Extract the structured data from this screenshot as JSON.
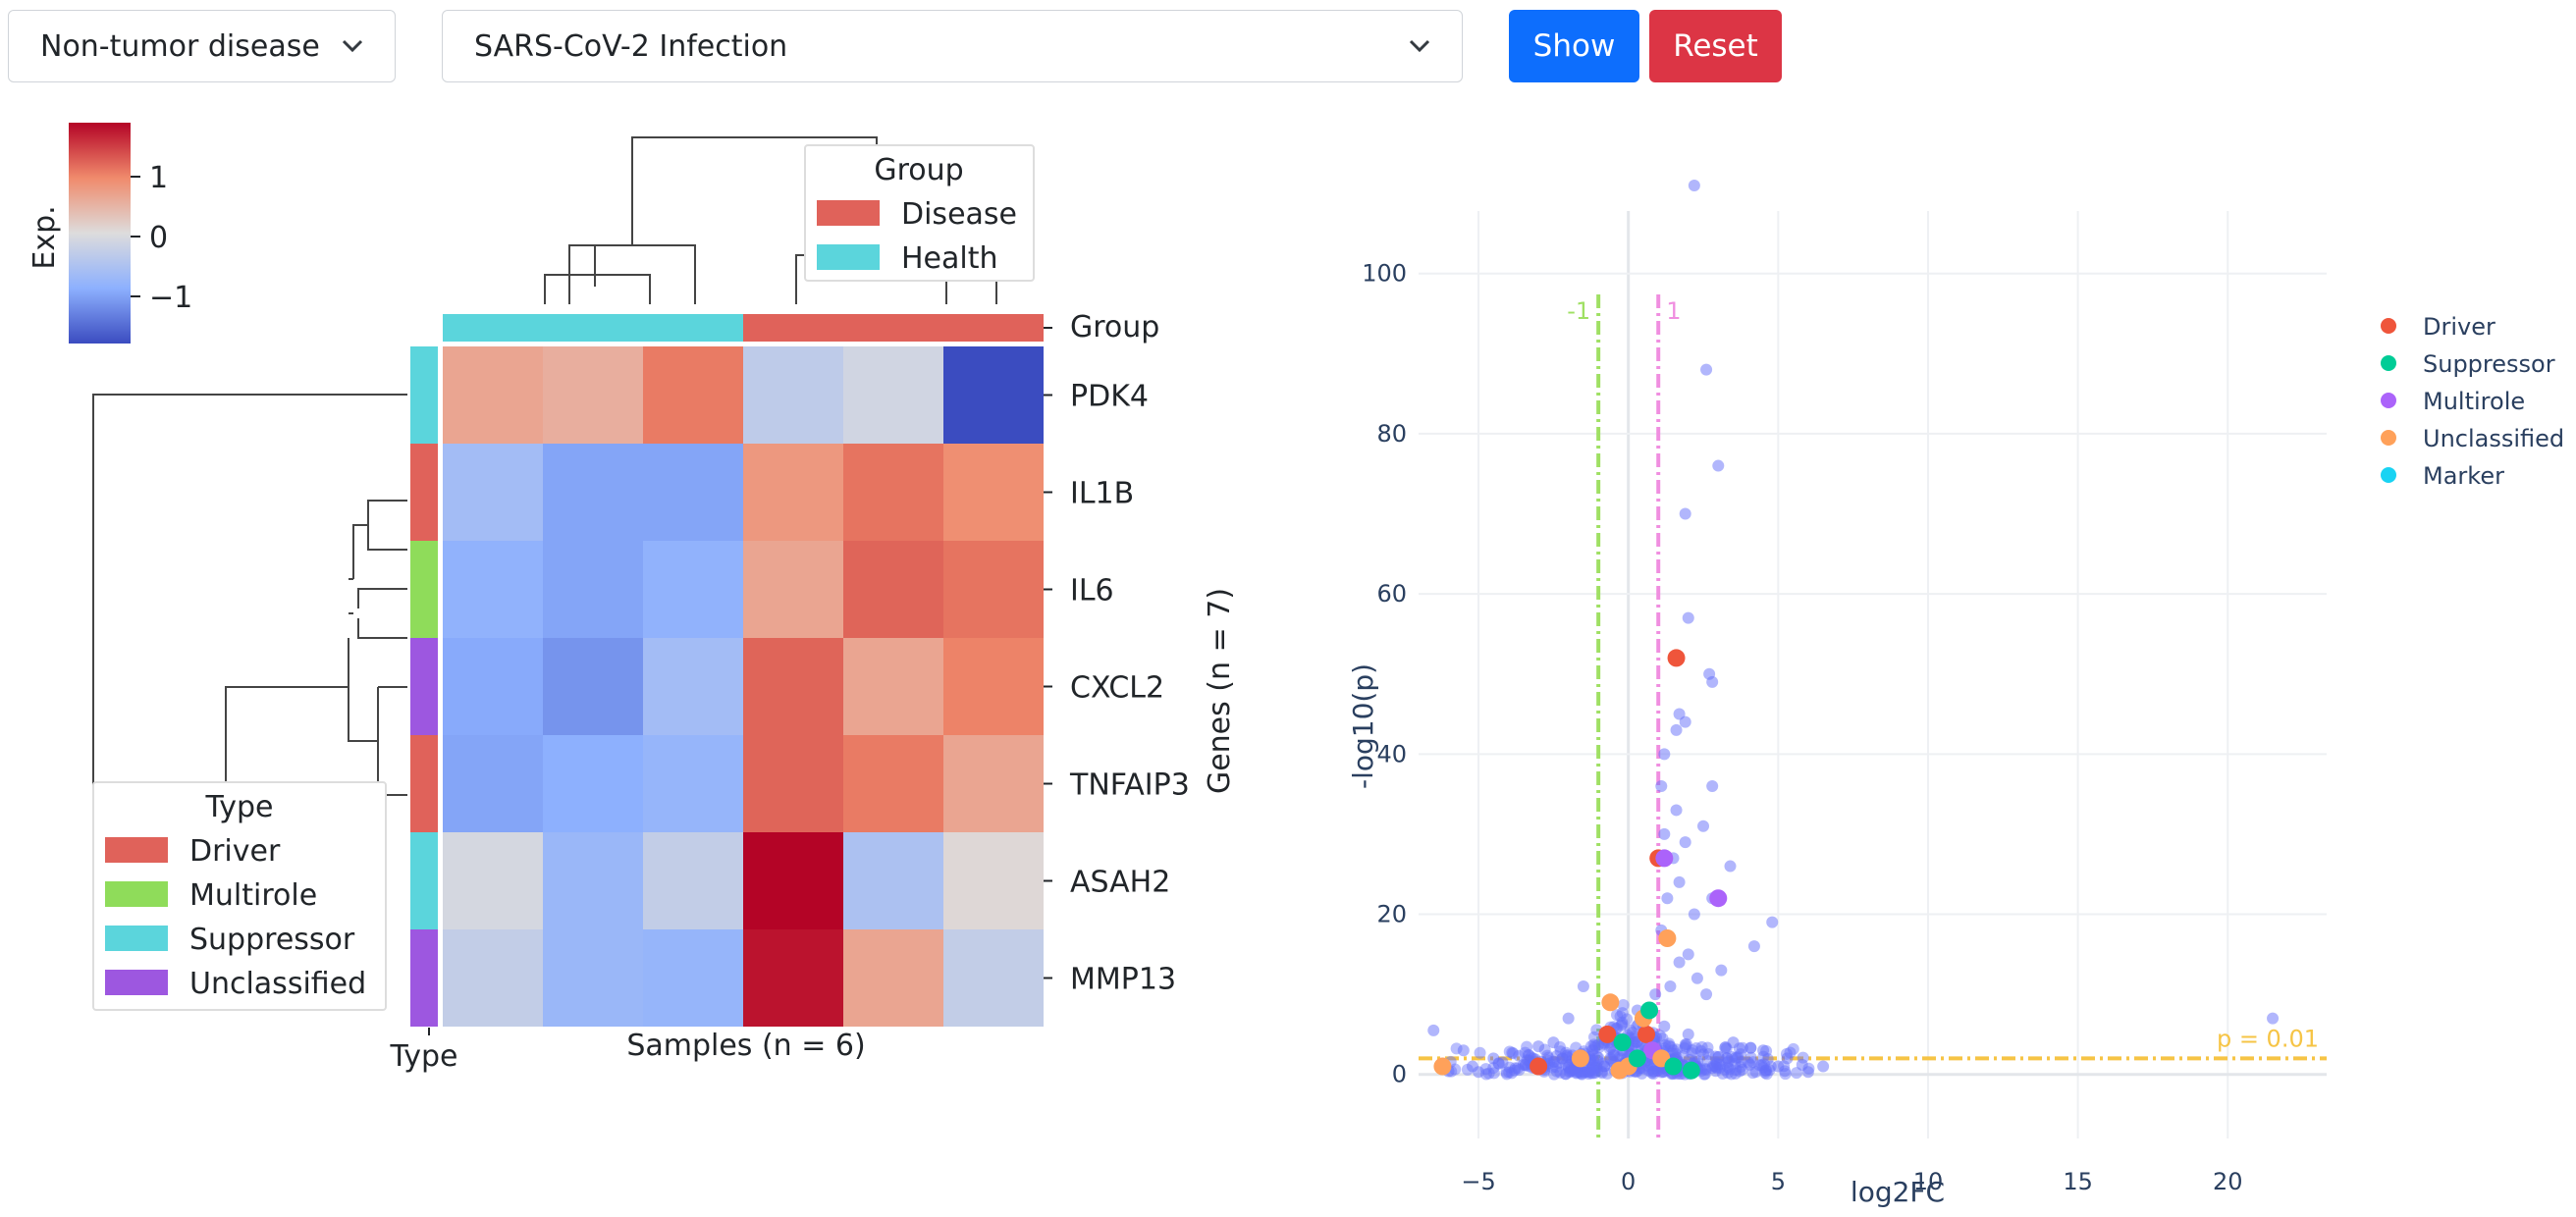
{
  "controls": {
    "category_select": "Non-tumor disease",
    "disease_select": "SARS-CoV-2 Infection",
    "show_label": "Show",
    "reset_label": "Reset"
  },
  "colors": {
    "disease": "#e0625a",
    "health": "#5bd5dc",
    "driver": "#e0625a",
    "multirole": "#8fdc5a",
    "suppressor": "#5bd5dc",
    "unclassified": "#9d57e0",
    "show_button": "#0d6efd",
    "reset_button": "#dc3545"
  },
  "chart_data": [
    {
      "type": "heatmap",
      "colorbar": {
        "title": "Exp.",
        "ticks": [
          "1",
          "0",
          "−1"
        ],
        "colormap": "coolwarm",
        "range": [
          -1.8,
          1.8
        ]
      },
      "columns_label": "Samples (n = 6)",
      "rows_label": "Genes (n = 7)",
      "group_bar_label": "Group",
      "type_bar_label": "Type",
      "column_groups": [
        "Health",
        "Health",
        "Health",
        "Disease",
        "Disease",
        "Disease"
      ],
      "row_types": [
        "Suppressor",
        "Driver",
        "Multirole",
        "Unclassified",
        "Driver",
        "Suppressor",
        "Unclassified"
      ],
      "rows": [
        "PDK4",
        "IL1B",
        "IL6",
        "CXCL2",
        "TNFAIP3",
        "ASAH2",
        "MMP13"
      ],
      "values": [
        [
          0.6,
          0.5,
          1.0,
          -0.35,
          -0.15,
          -1.8
        ],
        [
          -0.65,
          -1.0,
          -1.0,
          0.75,
          1.05,
          0.85
        ],
        [
          -0.85,
          -1.0,
          -0.85,
          0.6,
          1.15,
          1.05
        ],
        [
          -0.95,
          -1.15,
          -0.65,
          1.15,
          0.6,
          0.95
        ],
        [
          -1.0,
          -0.9,
          -0.8,
          1.15,
          1.0,
          0.6
        ],
        [
          -0.1,
          -0.75,
          -0.3,
          1.9,
          -0.55,
          0.05
        ],
        [
          -0.3,
          -0.75,
          -0.8,
          1.7,
          0.6,
          -0.3
        ]
      ],
      "group_legend": {
        "title": "Group",
        "items": [
          "Disease",
          "Health"
        ]
      },
      "type_legend": {
        "title": "Type",
        "items": [
          "Driver",
          "Multirole",
          "Suppressor",
          "Unclassified"
        ]
      }
    },
    {
      "type": "scatter",
      "xlabel": "log2FC",
      "ylabel": "-log10(p)",
      "xlim": [
        -7,
        23.3
      ],
      "ylim": [
        -8,
        117
      ],
      "xticks": [
        -5,
        0,
        5,
        10,
        15,
        20
      ],
      "yticks": [
        0,
        20,
        40,
        60,
        80,
        100
      ],
      "grid": true,
      "vlines": [
        {
          "x": -1,
          "label": "-1",
          "color": "#9fe063"
        },
        {
          "x": 1,
          "label": "1",
          "color": "#f08ee0"
        }
      ],
      "hline": {
        "y": 2,
        "label": "p = 0.01",
        "color": "#f6c445"
      },
      "legend": {
        "position": "top-right",
        "items": [
          {
            "name": "Driver",
            "color": "#ef553b"
          },
          {
            "name": "Suppressor",
            "color": "#00cc96"
          },
          {
            "name": "Multirole",
            "color": "#ab63fa"
          },
          {
            "name": "Unclassified",
            "color": "#ffa15a"
          },
          {
            "name": "Marker",
            "color": "#19d3f3"
          }
        ]
      },
      "background_points": [
        [
          2.2,
          111
        ],
        [
          2.6,
          88
        ],
        [
          3.0,
          76
        ],
        [
          1.9,
          70
        ],
        [
          2.0,
          57
        ],
        [
          2.8,
          49
        ],
        [
          2.7,
          50
        ],
        [
          1.7,
          45
        ],
        [
          1.9,
          44
        ],
        [
          1.6,
          43
        ],
        [
          1.2,
          40
        ],
        [
          2.8,
          36
        ],
        [
          1.1,
          36
        ],
        [
          1.6,
          33
        ],
        [
          2.5,
          31
        ],
        [
          1.2,
          30
        ],
        [
          1.9,
          29
        ],
        [
          1.5,
          27
        ],
        [
          3.4,
          26
        ],
        [
          1.7,
          24
        ],
        [
          2.8,
          22
        ],
        [
          1.3,
          22
        ],
        [
          2.2,
          20
        ],
        [
          4.8,
          19
        ],
        [
          1.1,
          18
        ],
        [
          4.2,
          16
        ],
        [
          2.0,
          15
        ],
        [
          1.7,
          14
        ],
        [
          3.1,
          13
        ],
        [
          2.3,
          12
        ],
        [
          1.4,
          11
        ],
        [
          2.6,
          10
        ],
        [
          0.9,
          10
        ],
        [
          -1.5,
          11
        ],
        [
          -2.0,
          7
        ],
        [
          -6.5,
          5.5
        ],
        [
          -5.5,
          3
        ],
        [
          -4.5,
          2
        ],
        [
          -3.0,
          3.5
        ],
        [
          -2.5,
          4
        ],
        [
          0.3,
          8
        ],
        [
          0.5,
          6
        ],
        [
          1.2,
          6
        ],
        [
          2.0,
          5
        ],
        [
          3.5,
          4
        ],
        [
          4.5,
          3
        ],
        [
          5.3,
          2
        ],
        [
          6.5,
          1
        ],
        [
          21.5,
          7
        ],
        [
          -5.2,
          1
        ],
        [
          -4.2,
          1.5
        ],
        [
          -3.5,
          1.2
        ],
        [
          -2.2,
          2
        ],
        [
          -1.2,
          3
        ],
        [
          -0.6,
          2
        ],
        [
          -0.2,
          3
        ],
        [
          0.1,
          2.5
        ],
        [
          0.6,
          3
        ],
        [
          1.5,
          3
        ],
        [
          2.5,
          2.5
        ],
        [
          3.3,
          2
        ],
        [
          4.0,
          1.5
        ],
        [
          5.0,
          1
        ],
        [
          5.8,
          1.2
        ],
        [
          -3.8,
          0.5
        ],
        [
          -2.8,
          0.6
        ],
        [
          -1.8,
          0.8
        ],
        [
          -0.8,
          1
        ],
        [
          0.2,
          1
        ],
        [
          1.8,
          1.2
        ],
        [
          2.8,
          0.8
        ],
        [
          3.8,
          0.6
        ],
        [
          4.6,
          0.5
        ],
        [
          -6.0,
          0.4
        ],
        [
          -5.0,
          0.3
        ],
        [
          6.0,
          0.3
        ]
      ],
      "points": [
        {
          "type": "Driver",
          "x": 1.6,
          "y": 52
        },
        {
          "type": "Driver",
          "x": 1.0,
          "y": 27
        },
        {
          "type": "Driver",
          "x": 0.6,
          "y": 5
        },
        {
          "type": "Driver",
          "x": -3.0,
          "y": 1
        },
        {
          "type": "Driver",
          "x": -0.7,
          "y": 5
        },
        {
          "type": "Multirole",
          "x": 3.0,
          "y": 22
        },
        {
          "type": "Multirole",
          "x": 1.2,
          "y": 27
        },
        {
          "type": "Multirole",
          "x": 0.8,
          "y": 3
        },
        {
          "type": "Unclassified",
          "x": 1.3,
          "y": 17
        },
        {
          "type": "Unclassified",
          "x": -6.2,
          "y": 1
        },
        {
          "type": "Unclassified",
          "x": -1.6,
          "y": 2
        },
        {
          "type": "Unclassified",
          "x": -0.6,
          "y": 9
        },
        {
          "type": "Unclassified",
          "x": 0.5,
          "y": 7
        },
        {
          "type": "Unclassified",
          "x": 0.0,
          "y": 1
        },
        {
          "type": "Unclassified",
          "x": 1.1,
          "y": 2
        },
        {
          "type": "Unclassified",
          "x": -0.3,
          "y": 0.5
        },
        {
          "type": "Suppressor",
          "x": 0.7,
          "y": 8
        },
        {
          "type": "Suppressor",
          "x": 2.1,
          "y": 0.5
        },
        {
          "type": "Suppressor",
          "x": 0.3,
          "y": 2
        },
        {
          "type": "Suppressor",
          "x": 1.5,
          "y": 1
        },
        {
          "type": "Suppressor",
          "x": -0.2,
          "y": 4
        }
      ]
    }
  ]
}
